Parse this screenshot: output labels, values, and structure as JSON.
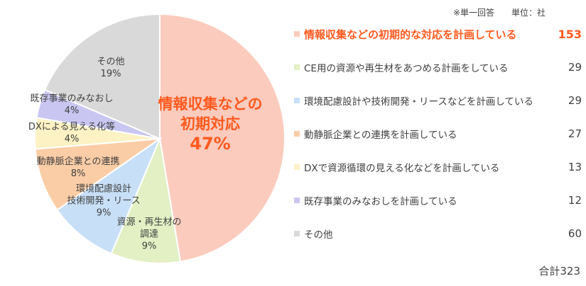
{
  "header": {
    "note": "※単一回答　　単位：社"
  },
  "chart_data": {
    "type": "pie",
    "total_label": "合計323",
    "slices": [
      {
        "legend": "情報収集などの初期的な対応を計画している",
        "value": 153,
        "pie_label_lines": [
          "情報収集などの",
          "初期対応",
          "47%"
        ],
        "color": "#fbcbbd",
        "highlight": true
      },
      {
        "legend": "CE用の資源や再生材をあつめる計画をしている",
        "value": 29,
        "pie_label_lines": [
          "資源・再生材の",
          "調達",
          "9%"
        ],
        "color": "#e2f0c4"
      },
      {
        "legend": "環境配慮設計や技術開発・リースなどを計画している",
        "value": 29,
        "pie_label_lines": [
          "環境配慮設計",
          "技術開発・リース",
          "9%"
        ],
        "color": "#c7dff7"
      },
      {
        "legend": "動静脈企業との連携を計画している",
        "value": 27,
        "pie_label_lines": [
          "動静脈企業との連携",
          "8%"
        ],
        "color": "#fbcda6"
      },
      {
        "legend": "DXで資源循環の見える化などを計画している",
        "value": 13,
        "pie_label_lines": [
          "DXによる見える化等",
          "4%"
        ],
        "color": "#fdf2c4"
      },
      {
        "legend": "既存事業のみなおしを計画している",
        "value": 12,
        "pie_label_lines": [
          "既存事業のみなおし",
          "4%"
        ],
        "color": "#c9c6f1"
      },
      {
        "legend": "その他",
        "value": 60,
        "pie_label_lines": [
          "その他",
          "19%"
        ],
        "color": "#d9d9d9"
      }
    ]
  }
}
